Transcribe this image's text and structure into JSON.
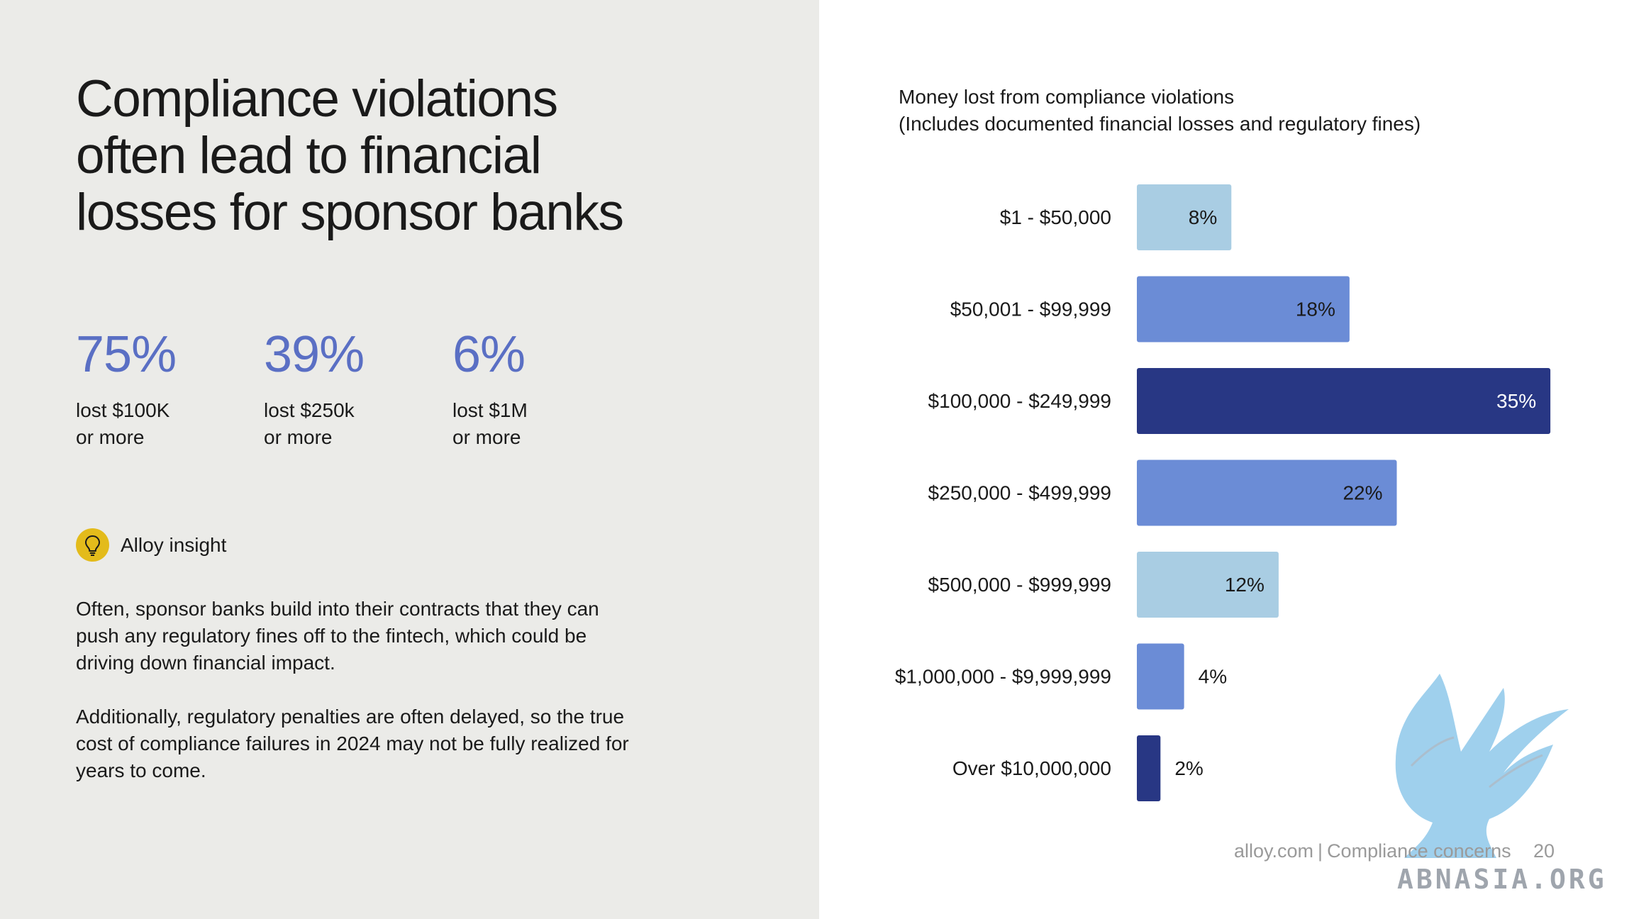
{
  "headline": {
    "lines": [
      "Compliance violations",
      "often lead to financial",
      "losses for sponsor banks"
    ]
  },
  "stats": [
    {
      "value": "75%",
      "line1": "lost $100K",
      "line2": "or more"
    },
    {
      "value": "39%",
      "line1": "lost $250k",
      "line2": "or more"
    },
    {
      "value": "6%",
      "line1": "lost $1M",
      "line2": "or more"
    }
  ],
  "insight": {
    "label": "Alloy insight",
    "icon": "lightbulb-icon",
    "badge_color": "#e3bb1b",
    "paragraph1": [
      "Often, sponsor banks build into their contracts that they can",
      "push any regulatory fines off to the fintech, which could be",
      "driving down financial impact."
    ],
    "paragraph2": [
      "Additionally, regulatory penalties are often delayed, so the true",
      "cost of compliance failures in 2024 may not be fully realized for",
      "years to come."
    ]
  },
  "chart_data": {
    "type": "bar",
    "orientation": "horizontal",
    "title": "Money lost from compliance violations",
    "subtitle": "(Includes documented financial losses and regulatory fines)",
    "categories": [
      "$1 - $50,000",
      "$50,001 - $99,999",
      "$100,000 - $249,999",
      "$250,000 - $499,999",
      "$500,000 - $999,999",
      "$1,000,000 - $9,999,999",
      "Over $10,000,000"
    ],
    "values": [
      8,
      18,
      35,
      22,
      12,
      4,
      2
    ],
    "value_labels": [
      "8%",
      "18%",
      "35%",
      "22%",
      "12%",
      "4%",
      "2%"
    ],
    "unit": "%",
    "xlim": [
      0,
      35
    ],
    "bar_colors": [
      "#a9cde3",
      "#6b8cd6",
      "#283784",
      "#6b8cd6",
      "#a9cde3",
      "#6b8cd6",
      "#283784"
    ],
    "label_colors": [
      "#1a1a1a",
      "#1a1a1a",
      "#ffffff",
      "#1a1a1a",
      "#1a1a1a",
      "#1a1a1a",
      "#1a1a1a"
    ],
    "grid": false,
    "legend": "none"
  },
  "footer": {
    "site": "alloy.com",
    "separator": "|",
    "section": "Compliance concerns",
    "page": "20"
  },
  "watermark": {
    "text": "ABNASIA.ORG",
    "color": "#8ec8ea"
  }
}
